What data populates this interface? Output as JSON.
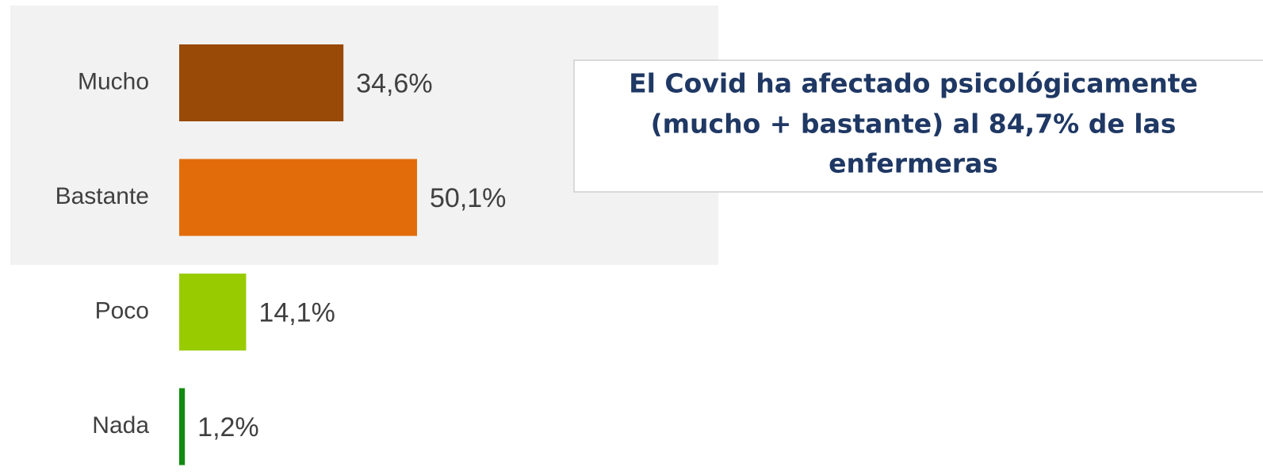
{
  "chart_data": {
    "type": "barh",
    "categories": [
      "Mucho",
      "Bastante",
      "Poco",
      "Nada"
    ],
    "values": [
      34.6,
      50.1,
      14.1,
      1.2
    ],
    "value_labels": [
      "34,6%",
      "50,1%",
      "14,1%",
      "1,2%"
    ],
    "colors": [
      "#994a06",
      "#e36c0a",
      "#99cc00",
      "#108a10"
    ],
    "annotation": [
      "El Covid ha afectado psicológicamente",
      "(mucho + bastante) al 84,7% de las",
      "enfermeras"
    ]
  }
}
